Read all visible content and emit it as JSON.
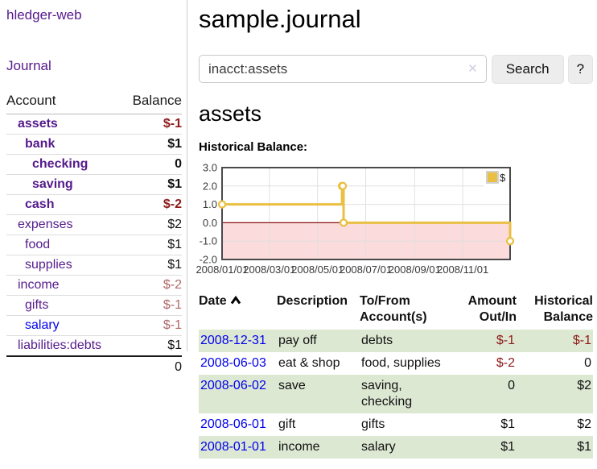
{
  "brand": "hledger-web",
  "sidebar": {
    "journal_link": "Journal",
    "accounts_table": {
      "headers": {
        "account": "Account",
        "balance": "Balance"
      },
      "rows": [
        {
          "name": "assets",
          "balance": "$-1"
        },
        {
          "name": "bank",
          "balance": "$1"
        },
        {
          "name": "checking",
          "balance": "0"
        },
        {
          "name": "saving",
          "balance": "$1"
        },
        {
          "name": "cash",
          "balance": "$-2"
        },
        {
          "name": "expenses",
          "balance": "$2"
        },
        {
          "name": "food",
          "balance": "$1"
        },
        {
          "name": "supplies",
          "balance": "$1"
        },
        {
          "name": "income",
          "balance": "$-2"
        },
        {
          "name": "gifts",
          "balance": "$-1"
        },
        {
          "name": "salary",
          "balance": "$-1"
        },
        {
          "name": "liabilities:debts",
          "balance": "$1"
        }
      ],
      "total": "0"
    }
  },
  "header": {
    "title": "sample.journal"
  },
  "search": {
    "value": "inacct:assets",
    "clear_icon": "✕",
    "search_button": "Search",
    "help_button": "?"
  },
  "account_page": {
    "heading": "assets",
    "chart_label": "Historical Balance:"
  },
  "chart_data": {
    "type": "line",
    "step": true,
    "title": "Historical Balance",
    "series": [
      {
        "name": "$",
        "color": "#e9c044",
        "points": [
          {
            "date": "2008-01-01",
            "day": 0,
            "value": 1
          },
          {
            "date": "2008-06-01",
            "day": 152,
            "value": 2
          },
          {
            "date": "2008-06-02",
            "day": 153,
            "value": 2
          },
          {
            "date": "2008-06-03",
            "day": 154,
            "value": 0
          },
          {
            "date": "2008-12-31",
            "day": 365,
            "value": -1
          }
        ]
      }
    ],
    "x_domain_days": [
      0,
      365
    ],
    "x_ticks": [
      {
        "day": 0,
        "label": "2008/01/01"
      },
      {
        "day": 60,
        "label": "2008/03/01"
      },
      {
        "day": 121,
        "label": "2008/05/01"
      },
      {
        "day": 182,
        "label": "2008/07/01"
      },
      {
        "day": 244,
        "label": "2008/09/01"
      },
      {
        "day": 305,
        "label": "2008/11/01"
      }
    ],
    "y_ticks": [
      {
        "value": 3,
        "label": "3.0"
      },
      {
        "value": 2,
        "label": "2.0"
      },
      {
        "value": 1,
        "label": "1.0"
      },
      {
        "value": 0,
        "label": "0.0"
      },
      {
        "value": -1,
        "label": "-1.0"
      },
      {
        "value": -2,
        "label": "-2.0"
      }
    ],
    "ylim": [
      -2,
      3
    ],
    "grid": true,
    "grid_color": "#e0e0e0",
    "border_color": "#4a4a4a",
    "legend": {
      "position": "top-right",
      "label": "$"
    },
    "negative_region": {
      "fill": "#fbdbdb",
      "zero_line_color": "#8b1212"
    }
  },
  "register": {
    "headers": {
      "date": "Date",
      "description": "Description",
      "accounts": "To/From Account(s)",
      "amount": "Amount Out/In",
      "balance": "Historical Balance"
    },
    "sort": {
      "column": "Date",
      "direction": "ascending"
    },
    "rows": [
      {
        "date": "2008-12-31",
        "description": "pay off",
        "accounts": "debts",
        "amount": "$-1",
        "balance": "$-1"
      },
      {
        "date": "2008-06-03",
        "description": "eat & shop",
        "accounts": "food, supplies",
        "amount": "$-2",
        "balance": "0"
      },
      {
        "date": "2008-06-02",
        "description": "save",
        "accounts": "saving, checking",
        "amount": "0",
        "balance": "$2"
      },
      {
        "date": "2008-06-01",
        "description": "gift",
        "accounts": "gifts",
        "amount": "$1",
        "balance": "$2"
      },
      {
        "date": "2008-01-01",
        "description": "income",
        "accounts": "salary",
        "amount": "$1",
        "balance": "$1"
      }
    ]
  }
}
